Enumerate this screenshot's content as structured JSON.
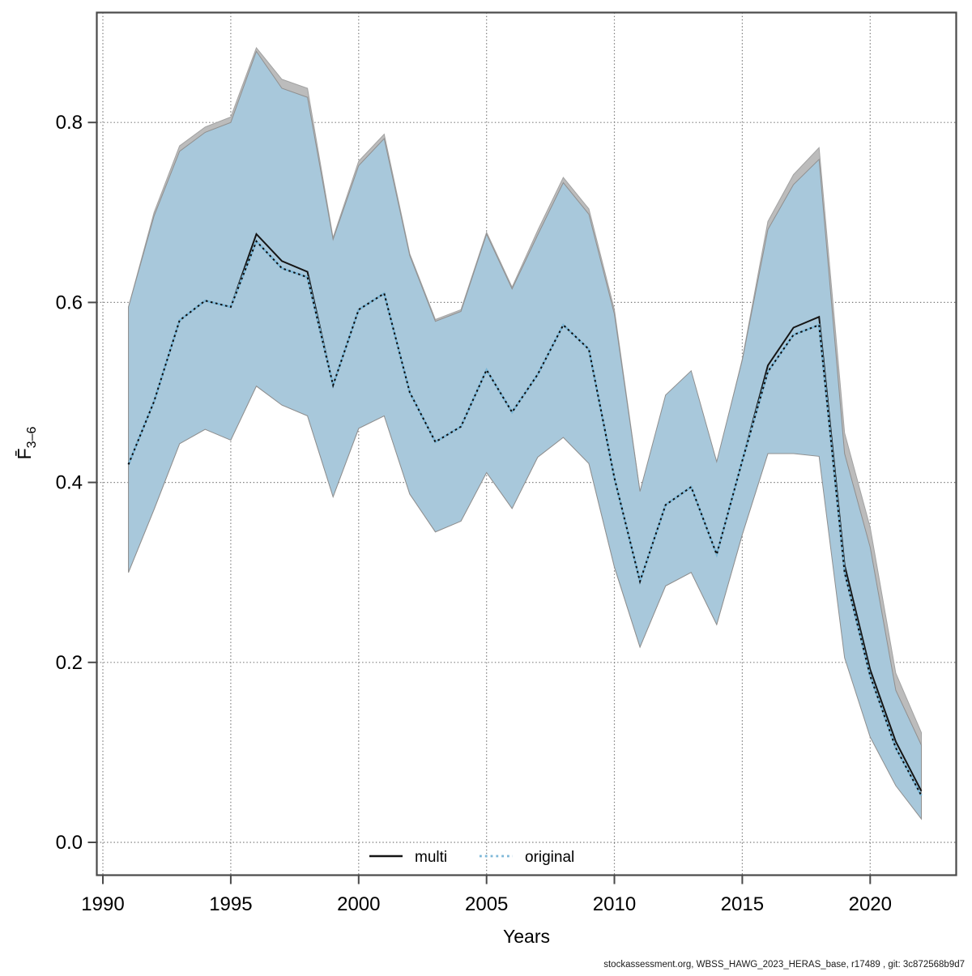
{
  "footer": "stockassessment.org, WBSS_HAWG_2023_HERAS_base, r17489 , git: 3c872568b9d7",
  "chart_data": {
    "type": "line",
    "title": "",
    "xlabel": "Years",
    "ylabel_base": "F̄",
    "ylabel_sub": "3–6",
    "grid": "dotted",
    "legend_position": "bottom-center-inside",
    "xticks": [
      1990,
      1995,
      2000,
      2005,
      2010,
      2015,
      2020
    ],
    "yticks": [
      0.0,
      0.2,
      0.4,
      0.6,
      0.8
    ],
    "xlim": [
      1989.76,
      2023.35
    ],
    "ylim": [
      -0.036,
      0.922
    ],
    "x": [
      1991,
      1992,
      1993,
      1994,
      1995,
      1996,
      1997,
      1998,
      1999,
      2000,
      2001,
      2002,
      2003,
      2004,
      2005,
      2006,
      2007,
      2008,
      2009,
      2010,
      2011,
      2012,
      2013,
      2014,
      2015,
      2016,
      2017,
      2018,
      2019,
      2020,
      2021,
      2022
    ],
    "series": [
      {
        "name": "multi",
        "style": "solid",
        "line_color": "#141414",
        "band_color": "#bcbcbc",
        "band_stroke": "#a3a3a3",
        "values": [
          0.42,
          0.49,
          0.58,
          0.602,
          0.595,
          0.676,
          0.646,
          0.634,
          0.508,
          0.592,
          0.61,
          0.5,
          0.445,
          0.462,
          0.525,
          0.478,
          0.52,
          0.575,
          0.548,
          0.405,
          0.29,
          0.375,
          0.395,
          0.32,
          0.424,
          0.53,
          0.572,
          0.584,
          0.308,
          0.192,
          0.112,
          0.057
        ],
        "upper": [
          0.595,
          0.7,
          0.774,
          0.795,
          0.806,
          0.883,
          0.848,
          0.838,
          0.672,
          0.757,
          0.787,
          0.654,
          0.581,
          0.592,
          0.678,
          0.617,
          0.68,
          0.739,
          0.704,
          0.592,
          0.39,
          0.493,
          0.52,
          0.421,
          0.537,
          0.69,
          0.742,
          0.772,
          0.455,
          0.35,
          0.188,
          0.122
        ],
        "lower": [
          0.3,
          0.37,
          0.443,
          0.459,
          0.447,
          0.507,
          0.486,
          0.474,
          0.384,
          0.46,
          0.474,
          0.387,
          0.345,
          0.357,
          0.411,
          0.371,
          0.428,
          0.45,
          0.421,
          0.306,
          0.217,
          0.285,
          0.3,
          0.242,
          0.342,
          0.432,
          0.437,
          0.437,
          0.26,
          0.145,
          0.09,
          0.05
        ]
      },
      {
        "name": "original",
        "style": "dotted",
        "line_color": "#7db8d8",
        "dot_color": "#0d0d0d",
        "band_color": "#a8c8db",
        "band_stroke": "#8f8f8f",
        "values": [
          0.42,
          0.49,
          0.58,
          0.602,
          0.595,
          0.668,
          0.638,
          0.628,
          0.508,
          0.592,
          0.61,
          0.5,
          0.445,
          0.462,
          0.525,
          0.478,
          0.52,
          0.575,
          0.548,
          0.405,
          0.29,
          0.375,
          0.395,
          0.32,
          0.424,
          0.523,
          0.564,
          0.575,
          0.3,
          0.185,
          0.105,
          0.052
        ],
        "upper": [
          0.595,
          0.696,
          0.768,
          0.789,
          0.8,
          0.879,
          0.838,
          0.828,
          0.67,
          0.752,
          0.782,
          0.652,
          0.579,
          0.59,
          0.676,
          0.615,
          0.675,
          0.733,
          0.698,
          0.587,
          0.39,
          0.497,
          0.524,
          0.423,
          0.536,
          0.681,
          0.731,
          0.759,
          0.432,
          0.328,
          0.169,
          0.108
        ],
        "lower": [
          0.3,
          0.37,
          0.443,
          0.459,
          0.447,
          0.507,
          0.486,
          0.474,
          0.384,
          0.46,
          0.474,
          0.387,
          0.345,
          0.357,
          0.411,
          0.371,
          0.428,
          0.45,
          0.421,
          0.306,
          0.217,
          0.285,
          0.3,
          0.242,
          0.342,
          0.432,
          0.432,
          0.429,
          0.205,
          0.117,
          0.063,
          0.026
        ]
      }
    ]
  }
}
